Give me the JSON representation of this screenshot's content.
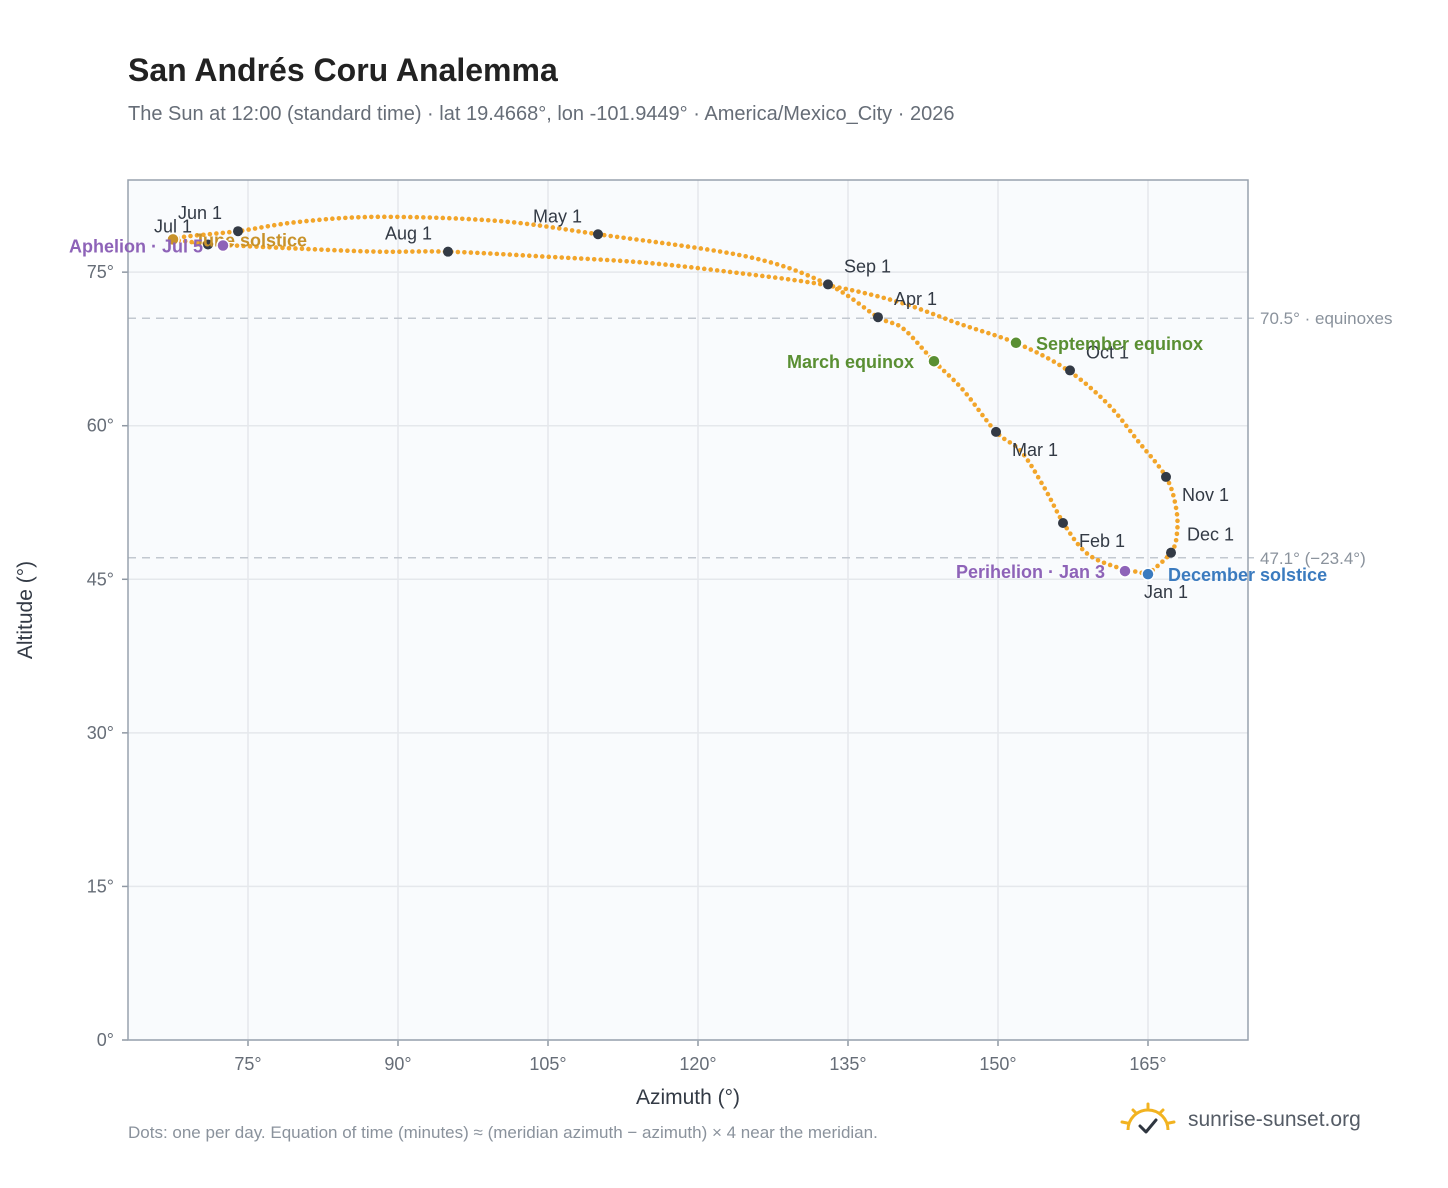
{
  "title": "San Andrés Coru Analemma",
  "subtitle": "The Sun at 12:00 (standard time) · lat 19.4668°, lon -101.9449° · America/Mexico_City · 2026",
  "footnote": "Dots: one per day. Equation of time (minutes) ≈ (meridian azimuth − azimuth) × 4 near the meridian.",
  "brand": {
    "name": "sunrise-sunset.org",
    "icon": "sun-logo-icon"
  },
  "colors": {
    "path": "#f2a52a",
    "month_dot": "#333a45",
    "equinox": "#5a8f33",
    "december_solstice": "#3b7bbf",
    "june_solstice": "#c8922a",
    "apsis": "#8e63b8",
    "grid": "#e5e8ec",
    "refline": "#c2c8d0",
    "plot_bg": "#f9fbfd"
  },
  "chart_data": {
    "type": "scatter",
    "title": "San Andrés Coru Analemma",
    "xlabel": "Azimuth (°)",
    "ylabel": "Altitude (°)",
    "xlim": [
      63,
      175
    ],
    "ylim": [
      0,
      84
    ],
    "xticks": [
      75,
      90,
      105,
      120,
      135,
      150,
      165
    ],
    "xtick_labels": [
      "75°",
      "90°",
      "105°",
      "120°",
      "135°",
      "150°",
      "165°"
    ],
    "yticks": [
      0,
      15,
      30,
      45,
      60,
      75
    ],
    "ytick_labels": [
      "0°",
      "15°",
      "30°",
      "45°",
      "60°",
      "75°"
    ],
    "grid": true,
    "path_points": [
      [
        165.0,
        45.5
      ],
      [
        161.5,
        46.3
      ],
      [
        158.8,
        47.6
      ],
      [
        156.6,
        50.4
      ],
      [
        154.6,
        54.0
      ],
      [
        152.3,
        57.5
      ],
      [
        149.8,
        59.4
      ],
      [
        146.5,
        63.5
      ],
      [
        143.6,
        66.3
      ],
      [
        140.5,
        69.5
      ],
      [
        138.0,
        70.6
      ],
      [
        133.0,
        73.8
      ],
      [
        125.0,
        76.5
      ],
      [
        110.0,
        78.7
      ],
      [
        100.0,
        80.0
      ],
      [
        88.0,
        80.4
      ],
      [
        80.0,
        79.9
      ],
      [
        74.0,
        79.0
      ],
      [
        69.0,
        78.5
      ],
      [
        67.5,
        78.2
      ],
      [
        68.0,
        78.1
      ],
      [
        72.0,
        77.7
      ],
      [
        80.0,
        77.3
      ],
      [
        88.0,
        77.0
      ],
      [
        95.0,
        77.0
      ],
      [
        105.0,
        76.5
      ],
      [
        115.0,
        75.9
      ],
      [
        125.0,
        74.8
      ],
      [
        133.0,
        73.7
      ],
      [
        140.0,
        72.1
      ],
      [
        146.0,
        70.0
      ],
      [
        152.0,
        68.0
      ],
      [
        157.0,
        65.4
      ],
      [
        161.0,
        62.1
      ],
      [
        164.0,
        58.5
      ],
      [
        166.8,
        55.0
      ],
      [
        167.8,
        52.0
      ],
      [
        167.9,
        49.5
      ],
      [
        167.3,
        47.6
      ],
      [
        165.0,
        45.5
      ]
    ],
    "month_markers": [
      {
        "label": "Jan 1",
        "az": 165.0,
        "alt": 45.5
      },
      {
        "label": "Feb 1",
        "az": 156.5,
        "alt": 50.5
      },
      {
        "label": "Mar 1",
        "az": 149.8,
        "alt": 59.4
      },
      {
        "label": "Apr 1",
        "az": 138.0,
        "alt": 70.6
      },
      {
        "label": "May 1",
        "az": 110.0,
        "alt": 78.7
      },
      {
        "label": "Jun 1",
        "az": 74.0,
        "alt": 79.0
      },
      {
        "label": "Jul 1",
        "az": 71.0,
        "alt": 77.7
      },
      {
        "label": "Aug 1",
        "az": 95.0,
        "alt": 77.0
      },
      {
        "label": "Sep 1",
        "az": 133.0,
        "alt": 73.8
      },
      {
        "label": "Oct 1",
        "az": 157.2,
        "alt": 65.4
      },
      {
        "label": "Nov 1",
        "az": 166.8,
        "alt": 55.0
      },
      {
        "label": "Dec 1",
        "az": 167.3,
        "alt": 47.6
      }
    ],
    "events": [
      {
        "label": "March equinox",
        "az": 143.6,
        "alt": 66.3,
        "color": "#5a8f33",
        "side": "left"
      },
      {
        "label": "September equinox",
        "az": 151.8,
        "alt": 68.1,
        "color": "#5a8f33",
        "side": "right"
      },
      {
        "label": "June solstice",
        "az": 67.5,
        "alt": 78.2,
        "color": "#c8922a",
        "side": "right"
      },
      {
        "label": "December solstice",
        "az": 165.0,
        "alt": 45.5,
        "color": "#3b7bbf",
        "side": "right"
      },
      {
        "label": "Perihelion · Jan 3",
        "az": 162.7,
        "alt": 45.8,
        "color": "#8e63b8",
        "side": "left"
      },
      {
        "label": "Aphelion · Jul 5",
        "az": 72.5,
        "alt": 77.6,
        "color": "#8e63b8",
        "side": "left"
      }
    ],
    "reference_lines": [
      {
        "alt": 70.5,
        "label": "70.5° · equinoxes"
      },
      {
        "alt": 47.1,
        "label": "47.1° (−23.4°)"
      }
    ]
  }
}
